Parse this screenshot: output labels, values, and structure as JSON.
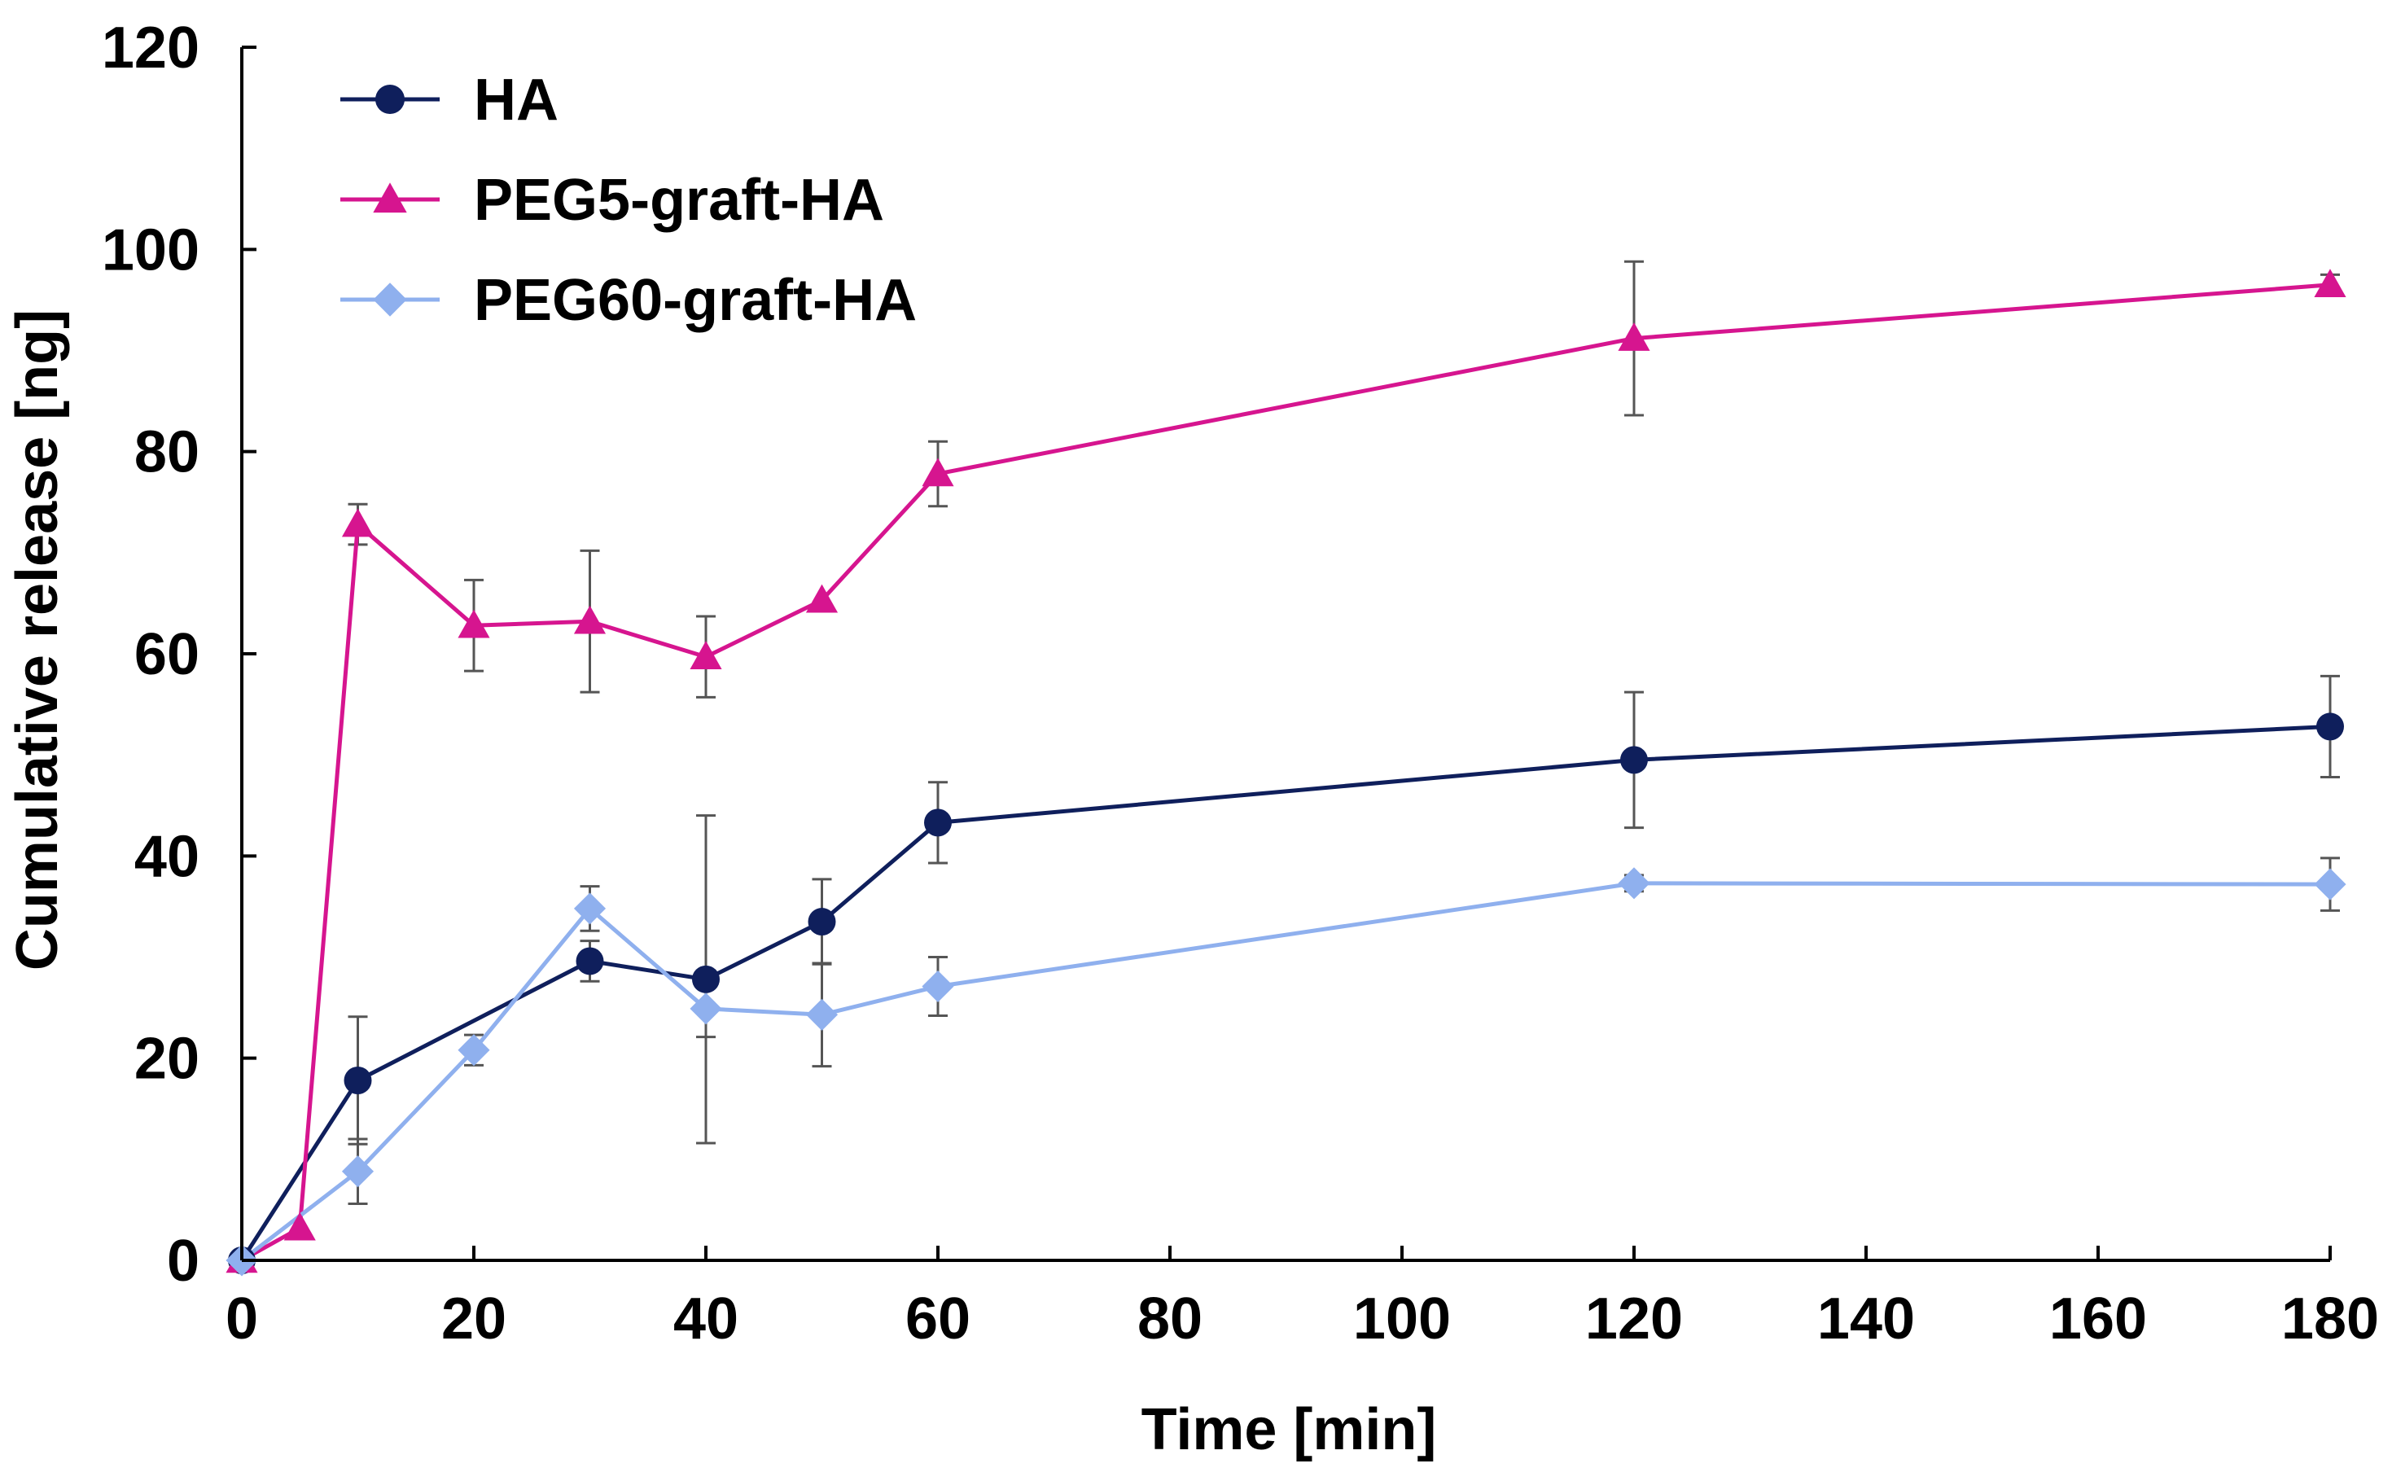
{
  "chart_data": {
    "type": "line",
    "title": "",
    "xlabel": "Time [min]",
    "ylabel": "Cumulative release [ng]",
    "xlim": [
      0,
      180
    ],
    "ylim": [
      0,
      120
    ],
    "xticks": [
      0,
      20,
      40,
      60,
      80,
      100,
      120,
      140,
      160,
      180
    ],
    "yticks": [
      0,
      20,
      40,
      60,
      80,
      100,
      120
    ],
    "xtick_labels": [
      "0",
      "20",
      "40",
      "60",
      "80",
      "100",
      "120",
      "140",
      "160",
      "180"
    ],
    "ytick_labels": [
      "0",
      "20",
      "40",
      "60",
      "80",
      "100",
      "120"
    ],
    "grid": false,
    "legend_position": "top-left",
    "series": [
      {
        "name": "HA",
        "color": "#0f1f5c",
        "marker": "circle",
        "x": [
          0,
          10,
          30,
          40,
          50,
          60,
          120,
          180
        ],
        "y": [
          0,
          17.8,
          29.6,
          27.8,
          33.5,
          43.3,
          49.5,
          52.8
        ],
        "err": [
          0,
          6.3,
          2.0,
          16.2,
          4.2,
          4.0,
          6.7,
          5.0
        ]
      },
      {
        "name": "PEG5-graft-HA",
        "color": "#d6158f",
        "marker": "triangle",
        "x": [
          0,
          5,
          10,
          20,
          30,
          40,
          50,
          60,
          120,
          180
        ],
        "y": [
          0,
          3.2,
          72.8,
          62.8,
          63.2,
          59.7,
          65.3,
          77.8,
          91.2,
          96.5
        ],
        "err": [
          0,
          0,
          2.0,
          4.5,
          7.0,
          4.0,
          0,
          3.2,
          7.6,
          1.0
        ]
      },
      {
        "name": "PEG60-graft-HA",
        "color": "#8fb0ee",
        "marker": "diamond",
        "x": [
          0,
          10,
          20,
          30,
          40,
          50,
          60,
          120,
          180
        ],
        "y": [
          0,
          8.8,
          20.8,
          34.8,
          24.9,
          24.3,
          27.1,
          37.3,
          37.2
        ],
        "err": [
          0,
          3.2,
          1.5,
          2.2,
          2.8,
          5.1,
          2.9,
          0.8,
          2.6
        ]
      }
    ]
  }
}
